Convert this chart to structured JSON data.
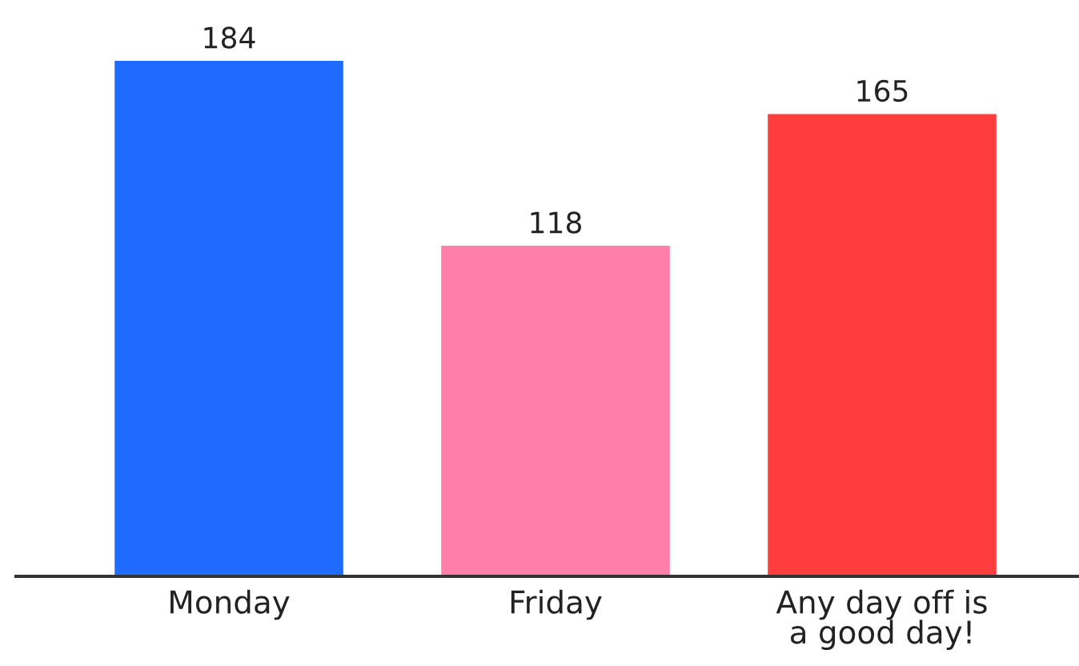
{
  "chart_data": {
    "type": "bar",
    "categories": [
      "Monday",
      "Friday",
      "Any day off is\na good day!"
    ],
    "values": [
      184,
      118,
      165
    ],
    "colors": [
      "#1f6bff",
      "#ff7eaa",
      "#ff3d3d"
    ],
    "data_labels": true,
    "grid": false,
    "tick_labels": "x"
  }
}
